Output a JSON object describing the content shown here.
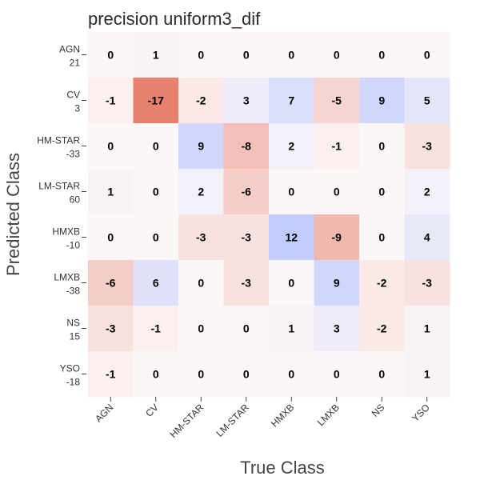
{
  "chart_data": {
    "type": "heatmap",
    "title": "precision uniform3_dif",
    "xlabel": "True Class",
    "ylabel": "Predicted Class",
    "x_categories": [
      "AGN",
      "CV",
      "HM-STAR",
      "LM-STAR",
      "HMXB",
      "LMXB",
      "NS",
      "YSO"
    ],
    "y_categories": [
      "AGN",
      "CV",
      "HM-STAR",
      "LM-STAR",
      "HMXB",
      "LMXB",
      "NS",
      "YSO"
    ],
    "y_sublabels": [
      "21",
      "3",
      "-33",
      "60",
      "-10",
      "-38",
      "15",
      "-18"
    ],
    "values": [
      [
        0,
        1,
        0,
        0,
        0,
        0,
        0,
        0
      ],
      [
        -1,
        -17,
        -2,
        3,
        7,
        -5,
        9,
        5
      ],
      [
        0,
        0,
        9,
        -8,
        2,
        -1,
        0,
        -3
      ],
      [
        1,
        0,
        2,
        -6,
        0,
        0,
        0,
        2
      ],
      [
        0,
        0,
        -3,
        -3,
        12,
        -9,
        0,
        4
      ],
      [
        -6,
        6,
        0,
        -3,
        0,
        9,
        -2,
        -3
      ],
      [
        -3,
        -1,
        0,
        0,
        1,
        3,
        -2,
        1
      ],
      [
        -1,
        0,
        0,
        0,
        0,
        0,
        0,
        1
      ]
    ],
    "color_range": [
      -17,
      17
    ],
    "colors": {
      "negative": "#e8806e",
      "zero": "#fcf7f7",
      "positive": "#a8bafc"
    }
  }
}
